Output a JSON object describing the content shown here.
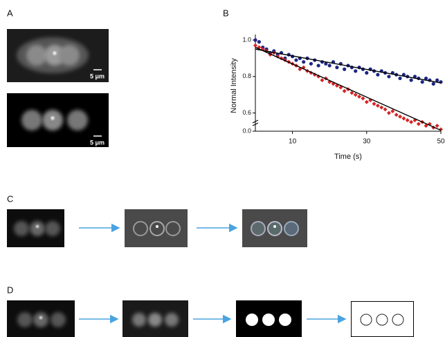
{
  "panel_labels": [
    "A",
    "B",
    "C",
    "D"
  ],
  "scale_bars": [
    "5 μm",
    "5 μm"
  ],
  "chart_data": {
    "type": "scatter",
    "xlabel": "Time (s)",
    "ylabel": "Normal Intensity",
    "x": [
      0,
      1,
      2,
      3,
      4,
      5,
      6,
      7,
      8,
      9,
      10,
      11,
      12,
      13,
      14,
      15,
      16,
      17,
      18,
      19,
      20,
      21,
      22,
      23,
      24,
      25,
      26,
      27,
      28,
      29,
      30,
      31,
      32,
      33,
      34,
      35,
      36,
      37,
      38,
      39,
      40,
      41,
      42,
      43,
      44,
      45,
      46,
      47,
      48,
      49,
      50
    ],
    "series": [
      {
        "color": "#1c2683",
        "marker": "circle",
        "values": [
          1.0,
          0.99,
          0.96,
          0.95,
          0.93,
          0.94,
          0.92,
          0.93,
          0.9,
          0.92,
          0.91,
          0.89,
          0.9,
          0.88,
          0.9,
          0.87,
          0.89,
          0.86,
          0.88,
          0.87,
          0.86,
          0.88,
          0.85,
          0.87,
          0.84,
          0.86,
          0.85,
          0.83,
          0.85,
          0.84,
          0.82,
          0.84,
          0.83,
          0.81,
          0.83,
          0.82,
          0.8,
          0.82,
          0.81,
          0.79,
          0.81,
          0.8,
          0.78,
          0.8,
          0.79,
          0.77,
          0.79,
          0.78,
          0.76,
          0.78,
          0.77
        ]
      },
      {
        "color": "#d42424",
        "marker": "diamond",
        "values": [
          0.97,
          0.96,
          0.95,
          0.94,
          0.92,
          0.93,
          0.91,
          0.9,
          0.89,
          0.88,
          0.87,
          0.86,
          0.84,
          0.85,
          0.83,
          0.82,
          0.81,
          0.8,
          0.78,
          0.79,
          0.77,
          0.76,
          0.75,
          0.74,
          0.72,
          0.73,
          0.71,
          0.7,
          0.69,
          0.68,
          0.66,
          0.67,
          0.65,
          0.64,
          0.63,
          0.62,
          0.6,
          0.61,
          0.59,
          0.58,
          0.57,
          0.56,
          0.55,
          0.56,
          0.54,
          0.55,
          0.53,
          0.54,
          0.52,
          0.53,
          0.51
        ]
      }
    ],
    "fits": [
      {
        "color": "#000000",
        "x": [
          0,
          50
        ],
        "values": [
          0.95,
          0.765
        ]
      },
      {
        "color": "#000000",
        "x": [
          0,
          50
        ],
        "values": [
          0.96,
          0.505
        ]
      }
    ],
    "xlim": [
      0,
      50
    ],
    "xticks": [
      10,
      30,
      50
    ],
    "ylim": [
      0,
      1
    ],
    "y_break": [
      0,
      0.5
    ],
    "yticks": [
      {
        "value": 0,
        "label": "0.0"
      },
      0.6,
      0.8,
      {
        "value": 1,
        "label": "1.0"
      }
    ]
  }
}
